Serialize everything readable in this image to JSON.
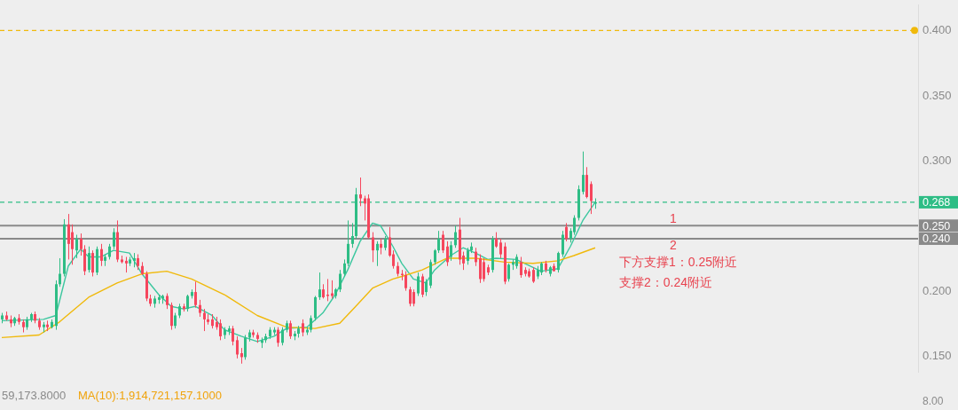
{
  "chart_data": {
    "type": "candlestick",
    "categories": [
      null,
      null,
      null,
      null,
      null,
      null,
      null,
      null,
      null,
      null,
      null,
      null,
      null,
      null,
      null,
      null,
      null,
      null,
      null,
      null,
      null,
      null,
      null,
      null,
      null,
      null,
      null,
      null,
      null,
      null,
      null,
      null,
      null,
      null,
      null,
      null,
      null,
      null,
      null,
      null,
      null,
      null,
      null,
      null,
      null,
      null,
      null,
      null,
      null,
      null,
      null,
      null,
      null,
      null,
      null,
      null,
      null,
      null,
      null,
      null,
      null,
      null,
      null,
      null,
      null,
      null,
      null,
      null,
      null,
      null,
      null,
      null,
      null,
      null,
      null,
      null,
      null,
      null,
      null,
      null,
      null,
      null,
      null,
      null,
      null,
      null,
      null,
      null,
      null,
      null,
      null,
      null,
      null,
      null,
      null,
      null,
      null,
      null,
      null,
      null,
      null,
      null,
      null,
      null,
      null,
      null,
      null,
      null,
      null,
      null,
      null,
      null,
      null,
      null,
      null,
      null,
      null,
      null,
      null,
      null,
      null,
      null,
      null,
      null,
      null,
      null,
      null,
      null,
      null,
      null,
      null,
      null,
      null,
      null,
      null,
      null,
      null,
      null,
      null,
      null,
      null,
      null,
      null,
      null,
      null,
      null,
      null,
      null,
      null,
      null,
      null,
      null,
      null,
      null,
      null,
      null,
      null,
      null,
      null,
      null,
      null,
      null,
      null,
      null,
      null,
      null,
      null,
      null,
      null,
      null,
      null,
      null,
      null,
      null,
      null,
      null,
      null,
      null,
      null,
      null,
      null,
      null,
      null,
      null,
      null,
      null,
      null,
      null,
      null,
      null,
      null,
      null,
      null,
      null,
      null,
      null,
      null,
      null,
      null,
      null,
      null,
      null,
      null,
      null,
      null,
      null,
      null,
      null,
      null,
      null,
      null,
      null,
      null,
      null,
      null,
      null,
      null,
      null,
      null,
      null,
      null,
      null,
      null
    ],
    "ohlc": [
      [
        0.178,
        0.183,
        0.175,
        0.181
      ],
      [
        0.181,
        0.184,
        0.177,
        0.178
      ],
      [
        0.178,
        0.181,
        0.172,
        0.175
      ],
      [
        0.175,
        0.18,
        0.173,
        0.179
      ],
      [
        0.179,
        0.182,
        0.174,
        0.176
      ],
      [
        0.176,
        0.178,
        0.168,
        0.172
      ],
      [
        0.172,
        0.18,
        0.17,
        0.178
      ],
      [
        0.178,
        0.183,
        0.176,
        0.182
      ],
      [
        0.182,
        0.184,
        0.175,
        0.177
      ],
      [
        0.177,
        0.179,
        0.17,
        0.172
      ],
      [
        0.172,
        0.176,
        0.168,
        0.174
      ],
      [
        0.174,
        0.177,
        0.169,
        0.172
      ],
      [
        0.172,
        0.178,
        0.171,
        0.176
      ],
      [
        0.173,
        0.208,
        0.17,
        0.205
      ],
      [
        0.205,
        0.225,
        0.203,
        0.213
      ],
      [
        0.213,
        0.255,
        0.211,
        0.251
      ],
      [
        0.251,
        0.259,
        0.224,
        0.236
      ],
      [
        0.245,
        0.251,
        0.22,
        0.232
      ],
      [
        0.231,
        0.243,
        0.225,
        0.24
      ],
      [
        0.24,
        0.244,
        0.227,
        0.232
      ],
      [
        0.232,
        0.235,
        0.212,
        0.215
      ],
      [
        0.216,
        0.234,
        0.214,
        0.229
      ],
      [
        0.229,
        0.231,
        0.211,
        0.214
      ],
      [
        0.214,
        0.234,
        0.212,
        0.232
      ],
      [
        0.232,
        0.236,
        0.219,
        0.223
      ],
      [
        0.223,
        0.228,
        0.219,
        0.226
      ],
      [
        0.226,
        0.236,
        0.224,
        0.234
      ],
      [
        0.234,
        0.248,
        0.232,
        0.245
      ],
      [
        0.245,
        0.254,
        0.222,
        0.224
      ],
      [
        0.224,
        0.227,
        0.221,
        0.222
      ],
      [
        0.223,
        0.226,
        0.214,
        0.221
      ],
      [
        0.221,
        0.226,
        0.219,
        0.224
      ],
      [
        0.223,
        0.229,
        0.218,
        0.225
      ],
      [
        0.225,
        0.228,
        0.216,
        0.219
      ],
      [
        0.219,
        0.222,
        0.212,
        0.213
      ],
      [
        0.213,
        0.215,
        0.192,
        0.194
      ],
      [
        0.194,
        0.197,
        0.188,
        0.19
      ],
      [
        0.19,
        0.196,
        0.187,
        0.194
      ],
      [
        0.193,
        0.197,
        0.19,
        0.195
      ],
      [
        0.194,
        0.197,
        0.19,
        0.196
      ],
      [
        0.196,
        0.198,
        0.186,
        0.189
      ],
      [
        0.189,
        0.191,
        0.17,
        0.173
      ],
      [
        0.173,
        0.183,
        0.171,
        0.181
      ],
      [
        0.181,
        0.19,
        0.179,
        0.188
      ],
      [
        0.188,
        0.19,
        0.184,
        0.186
      ],
      [
        0.186,
        0.197,
        0.184,
        0.196
      ],
      [
        0.196,
        0.201,
        0.194,
        0.199
      ],
      [
        0.199,
        0.207,
        0.187,
        0.189
      ],
      [
        0.189,
        0.193,
        0.18,
        0.183
      ],
      [
        0.183,
        0.186,
        0.169,
        0.178
      ],
      [
        0.178,
        0.182,
        0.174,
        0.176
      ],
      [
        0.178,
        0.182,
        0.171,
        0.173
      ],
      [
        0.176,
        0.18,
        0.17,
        0.172
      ],
      [
        0.175,
        0.178,
        0.162,
        0.165
      ],
      [
        0.166,
        0.172,
        0.163,
        0.17
      ],
      [
        0.169,
        0.173,
        0.166,
        0.171
      ],
      [
        0.171,
        0.173,
        0.158,
        0.161
      ],
      [
        0.162,
        0.165,
        0.148,
        0.151
      ],
      [
        0.152,
        0.156,
        0.144,
        0.149
      ],
      [
        0.149,
        0.166,
        0.147,
        0.164
      ],
      [
        0.164,
        0.17,
        0.161,
        0.168
      ],
      [
        0.168,
        0.17,
        0.164,
        0.166
      ],
      [
        0.166,
        0.168,
        0.16,
        0.163
      ],
      [
        0.16,
        0.164,
        0.156,
        0.162
      ],
      [
        0.162,
        0.167,
        0.16,
        0.165
      ],
      [
        0.165,
        0.172,
        0.163,
        0.17
      ],
      [
        0.168,
        0.172,
        0.166,
        0.17
      ],
      [
        0.17,
        0.172,
        0.157,
        0.16
      ],
      [
        0.16,
        0.172,
        0.158,
        0.17
      ],
      [
        0.17,
        0.177,
        0.168,
        0.175
      ],
      [
        0.175,
        0.177,
        0.163,
        0.165
      ],
      [
        0.165,
        0.169,
        0.162,
        0.167
      ],
      [
        0.167,
        0.173,
        0.164,
        0.171
      ],
      [
        0.175,
        0.178,
        0.165,
        0.168
      ],
      [
        0.168,
        0.172,
        0.166,
        0.17
      ],
      [
        0.17,
        0.181,
        0.168,
        0.179
      ],
      [
        0.179,
        0.196,
        0.177,
        0.195
      ],
      [
        0.195,
        0.214,
        0.193,
        0.201
      ],
      [
        0.201,
        0.205,
        0.194,
        0.195
      ],
      [
        0.197,
        0.209,
        0.192,
        0.196
      ],
      [
        0.198,
        0.208,
        0.194,
        0.196
      ],
      [
        0.196,
        0.202,
        0.194,
        0.201
      ],
      [
        0.201,
        0.216,
        0.199,
        0.213
      ],
      [
        0.213,
        0.224,
        0.211,
        0.221
      ],
      [
        0.221,
        0.254,
        0.219,
        0.236
      ],
      [
        0.236,
        0.252,
        0.233,
        0.242
      ],
      [
        0.242,
        0.279,
        0.24,
        0.274
      ],
      [
        0.274,
        0.287,
        0.265,
        0.271
      ],
      [
        0.271,
        0.273,
        0.254,
        0.267
      ],
      [
        0.271,
        0.274,
        0.24,
        0.241
      ],
      [
        0.241,
        0.245,
        0.222,
        0.231
      ],
      [
        0.231,
        0.238,
        0.219,
        0.236
      ],
      [
        0.236,
        0.24,
        0.228,
        0.233
      ],
      [
        0.233,
        0.242,
        0.231,
        0.24
      ],
      [
        0.241,
        0.249,
        0.226,
        0.227
      ],
      [
        0.228,
        0.231,
        0.217,
        0.219
      ],
      [
        0.219,
        0.222,
        0.211,
        0.213
      ],
      [
        0.213,
        0.216,
        0.208,
        0.212
      ],
      [
        0.212,
        0.215,
        0.2,
        0.202
      ],
      [
        0.201,
        0.203,
        0.188,
        0.19
      ],
      [
        0.199,
        0.201,
        0.188,
        0.19
      ],
      [
        0.198,
        0.214,
        0.196,
        0.211
      ],
      [
        0.211,
        0.213,
        0.195,
        0.197
      ],
      [
        0.199,
        0.209,
        0.196,
        0.207
      ],
      [
        0.204,
        0.224,
        0.202,
        0.222
      ],
      [
        0.222,
        0.232,
        0.22,
        0.231
      ],
      [
        0.231,
        0.246,
        0.229,
        0.24
      ],
      [
        0.243,
        0.246,
        0.229,
        0.231
      ],
      [
        0.234,
        0.238,
        0.219,
        0.222
      ],
      [
        0.226,
        0.238,
        0.223,
        0.235
      ],
      [
        0.235,
        0.25,
        0.233,
        0.245
      ],
      [
        0.247,
        0.256,
        0.22,
        0.224
      ],
      [
        0.227,
        0.23,
        0.216,
        0.221
      ],
      [
        0.223,
        0.233,
        0.22,
        0.231
      ],
      [
        0.231,
        0.237,
        0.229,
        0.234
      ],
      [
        0.23,
        0.233,
        0.219,
        0.222
      ],
      [
        0.225,
        0.228,
        0.206,
        0.209
      ],
      [
        0.222,
        0.225,
        0.207,
        0.209
      ],
      [
        0.218,
        0.22,
        0.212,
        0.214
      ],
      [
        0.216,
        0.242,
        0.214,
        0.24
      ],
      [
        0.24,
        0.245,
        0.233,
        0.234
      ],
      [
        0.237,
        0.24,
        0.225,
        0.228
      ],
      [
        0.234,
        0.237,
        0.205,
        0.207
      ],
      [
        0.209,
        0.221,
        0.207,
        0.22
      ],
      [
        0.22,
        0.224,
        0.216,
        0.222
      ],
      [
        0.219,
        0.228,
        0.217,
        0.226
      ],
      [
        0.222,
        0.226,
        0.21,
        0.212
      ],
      [
        0.216,
        0.218,
        0.211,
        0.213
      ],
      [
        0.215,
        0.217,
        0.21,
        0.211
      ],
      [
        0.216,
        0.218,
        0.206,
        0.207
      ],
      [
        0.211,
        0.219,
        0.209,
        0.216
      ],
      [
        0.214,
        0.222,
        0.212,
        0.221
      ],
      [
        0.221,
        0.223,
        0.214,
        0.216
      ],
      [
        0.213,
        0.219,
        0.211,
        0.218
      ],
      [
        0.219,
        0.221,
        0.215,
        0.215
      ],
      [
        0.216,
        0.23,
        0.214,
        0.229
      ],
      [
        0.228,
        0.246,
        0.226,
        0.243
      ],
      [
        0.249,
        0.252,
        0.238,
        0.24
      ],
      [
        0.24,
        0.248,
        0.237,
        0.246
      ],
      [
        0.245,
        0.258,
        0.243,
        0.256
      ],
      [
        0.256,
        0.281,
        0.254,
        0.278
      ],
      [
        0.276,
        0.307,
        0.274,
        0.289
      ],
      [
        0.289,
        0.295,
        0.271,
        0.272
      ],
      [
        0.282,
        0.284,
        0.259,
        0.269
      ],
      [
        0.267,
        0.271,
        0.263,
        0.268
      ],
      null,
      null,
      null,
      null,
      null,
      null,
      null,
      null,
      null,
      null,
      null,
      null,
      null,
      null,
      null,
      null,
      null,
      null,
      null,
      null,
      null,
      null,
      null,
      null,
      null,
      null,
      null,
      null,
      null,
      null,
      null,
      null,
      null,
      null,
      null,
      null,
      null,
      null,
      null,
      null,
      null,
      null,
      null,
      null,
      null,
      null,
      null,
      null,
      null,
      null,
      null,
      null,
      null,
      null,
      null,
      null,
      null,
      null,
      null,
      null,
      null,
      null,
      null,
      null,
      null,
      null,
      null,
      null,
      null,
      null,
      null,
      null,
      null,
      null,
      null,
      null,
      null,
      null
    ],
    "series": [
      {
        "type": "line",
        "color": "#3cc79f",
        "values": [
          0.177,
          null,
          null,
          null,
          null,
          null,
          null,
          null,
          null,
          null,
          0.178,
          null,
          null,
          0.181,
          null,
          null,
          0.219,
          null,
          null,
          0.232,
          null,
          0.226,
          null,
          null,
          0.226,
          null,
          null,
          0.231,
          null,
          null,
          null,
          0.229,
          null,
          null,
          0.213,
          null,
          null,
          null,
          0.197,
          null,
          null,
          0.188,
          null,
          null,
          0.186,
          null,
          null,
          0.188,
          null,
          null,
          null,
          0.181,
          null,
          null,
          0.17,
          null,
          null,
          null,
          0.165,
          null,
          null,
          null,
          0.161,
          null,
          null,
          null,
          0.165,
          null,
          null,
          0.171,
          null,
          null,
          null,
          null,
          0.172,
          null,
          null,
          null,
          0.183,
          null,
          null,
          0.197,
          null,
          null,
          0.216,
          null,
          null,
          0.238,
          null,
          null,
          0.252,
          null,
          0.25,
          null,
          null,
          0.234,
          null,
          0.221,
          null,
          null,
          0.209,
          null,
          null,
          0.206,
          null,
          0.216,
          null,
          null,
          null,
          0.227,
          null,
          null,
          0.233,
          null,
          null,
          0.229,
          null,
          null,
          0.224,
          null,
          0.225,
          null,
          null,
          null,
          null,
          0.224,
          null,
          null,
          null,
          null,
          null,
          0.215,
          null,
          null,
          null,
          0.217,
          null,
          null,
          0.234,
          null,
          null,
          0.254,
          null,
          null,
          0.268,
          null,
          null,
          null,
          null,
          null,
          null,
          null,
          null,
          null,
          null,
          null,
          null,
          null,
          null,
          null,
          null,
          null,
          null,
          null,
          null,
          null,
          null,
          null,
          null,
          null,
          null,
          null,
          null,
          null,
          null,
          null,
          null,
          null,
          null,
          null,
          null,
          null,
          null,
          null,
          null,
          null,
          null,
          null,
          null,
          null,
          null,
          null,
          null,
          null,
          null,
          null,
          null,
          null,
          null,
          null,
          null,
          null,
          null,
          null,
          null,
          null,
          null,
          null,
          null,
          null,
          null,
          null,
          null,
          null,
          null,
          null,
          null,
          null,
          null,
          null,
          null,
          null,
          null
        ]
      },
      {
        "type": "line",
        "color": "#f0b90b",
        "values": [
          0.164,
          null,
          null,
          null,
          null,
          null,
          null,
          null,
          null,
          0.166,
          null,
          null,
          null,
          null,
          0.176,
          null,
          null,
          null,
          null,
          null,
          null,
          0.195,
          null,
          null,
          null,
          null,
          null,
          null,
          0.206,
          null,
          null,
          null,
          null,
          null,
          0.213,
          null,
          null,
          null,
          null,
          null,
          0.215,
          null,
          null,
          null,
          null,
          null,
          0.209,
          null,
          null,
          null,
          null,
          null,
          null,
          null,
          0.197,
          null,
          null,
          null,
          null,
          null,
          null,
          null,
          0.181,
          null,
          null,
          null,
          null,
          null,
          null,
          0.172,
          null,
          null,
          null,
          null,
          null,
          null,
          0.171,
          null,
          null,
          null,
          null,
          null,
          0.175,
          null,
          null,
          null,
          0.188,
          null,
          null,
          null,
          0.202,
          null,
          null,
          null,
          null,
          0.209,
          null,
          0.211,
          null,
          null,
          null,
          null,
          0.216,
          null,
          null,
          null,
          null,
          null,
          0.225,
          null,
          null,
          null,
          null,
          null,
          null,
          0.225,
          null,
          null,
          null,
          null,
          null,
          null,
          0.222,
          null,
          null,
          null,
          null,
          null,
          null,
          0.221,
          null,
          null,
          null,
          null,
          null,
          0.223,
          null,
          null,
          null,
          0.227,
          null,
          null,
          null,
          null,
          0.233,
          null,
          null,
          null,
          null,
          null,
          null,
          null,
          null,
          null,
          null,
          null,
          null,
          null,
          null,
          null,
          null,
          null,
          null,
          null,
          null,
          null,
          null,
          null,
          null,
          null,
          null,
          null,
          null,
          null,
          null,
          null,
          null,
          null,
          null,
          null,
          null,
          null,
          null,
          null,
          null,
          null,
          null,
          null,
          null,
          null,
          null,
          null,
          null,
          null,
          null,
          null,
          null,
          null,
          null,
          null,
          null,
          null,
          null,
          null,
          null,
          null,
          null,
          null,
          null,
          null,
          null,
          null,
          null,
          null,
          null,
          null,
          null,
          null,
          null,
          null,
          null,
          null,
          null
        ]
      }
    ],
    "ylim": [
      0.137,
      0.42
    ],
    "yticks": [
      {
        "value": 0.4,
        "label": "0.400"
      },
      {
        "value": 0.35,
        "label": "0.350"
      },
      {
        "value": 0.3,
        "label": "0.300"
      },
      {
        "value": 0.2,
        "label": "0.200"
      },
      {
        "value": 0.15,
        "label": "0.150"
      }
    ],
    "ref_lines": [
      {
        "axis": "y",
        "value": 0.4,
        "color": "#f0b90b",
        "line_style": "dashed"
      },
      {
        "axis": "y",
        "value": 0.268,
        "label": "0.268",
        "color": "#2ebd85",
        "line_style": "dashed"
      },
      {
        "axis": "y",
        "value": 0.25,
        "label": "0.250",
        "color": "#8a8a8a",
        "line_style": "solid"
      },
      {
        "axis": "y",
        "value": 0.24,
        "label": "0.240",
        "color": "#8a8a8a",
        "line_style": "solid"
      }
    ],
    "annotations": [
      {
        "text": "1",
        "y": 0.25
      },
      {
        "text": "2",
        "y": 0.24
      },
      "下方支撑1：0.25附近",
      "支撑2：0.24附近",
      "59,173.8000",
      "MA(10):1,914,721,157.1000",
      "8.00"
    ]
  }
}
